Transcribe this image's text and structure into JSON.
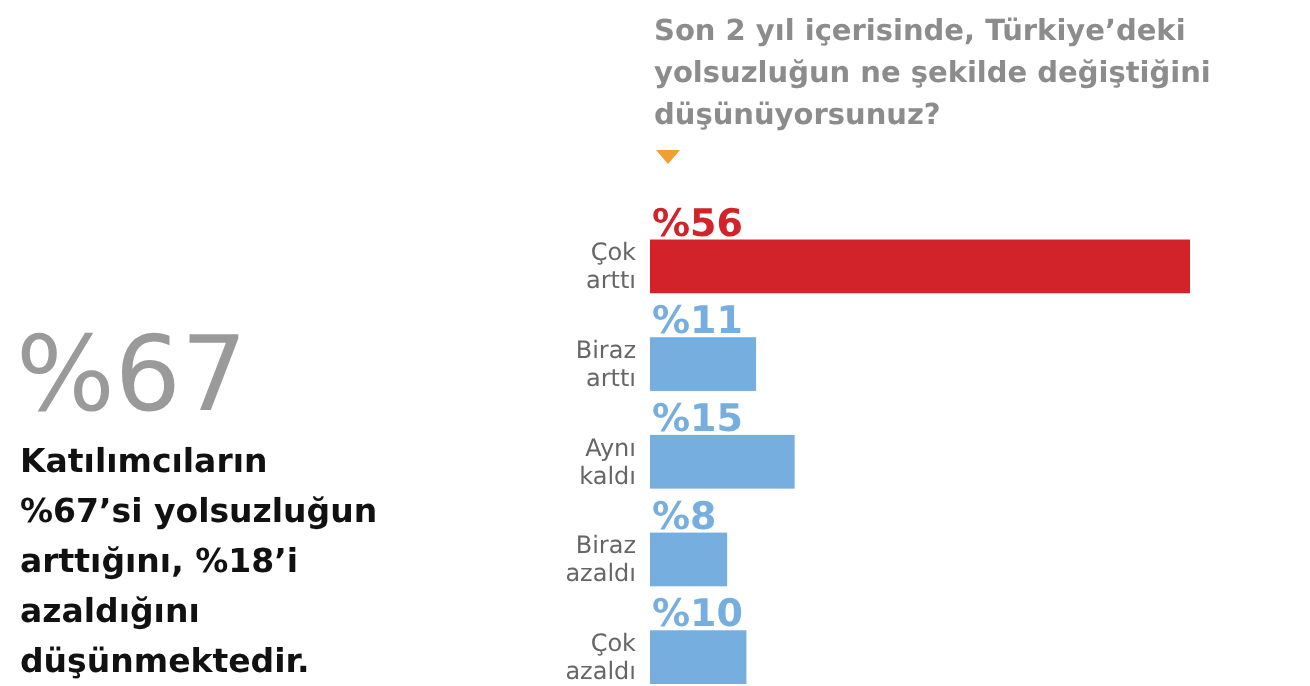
{
  "chart_data": {
    "type": "bar",
    "orientation": "horizontal",
    "title": "Son 2 yıl içerisinde, Türkiye’deki yolsuzluğun ne şekilde değiştiğini düşünüyorsunuz?",
    "categories": [
      "Çok arttı",
      "Biraz arttı",
      "Aynı kaldı",
      "Biraz azaldı",
      "Çok azaldı"
    ],
    "values": [
      56,
      11,
      15,
      8,
      10
    ],
    "colors": [
      "#d2232a",
      "#77aee0",
      "#77aee0",
      "#77aee0",
      "#77aee0"
    ],
    "value_labels": [
      "%56",
      "%11",
      "%15",
      "%8",
      "%10"
    ],
    "xlim": [
      0,
      56
    ],
    "annotations": [
      "%67",
      "Katılımcıların %67’si yolsuzluğun arttığını, %18’i azaldığını düşünmektedir."
    ]
  }
}
